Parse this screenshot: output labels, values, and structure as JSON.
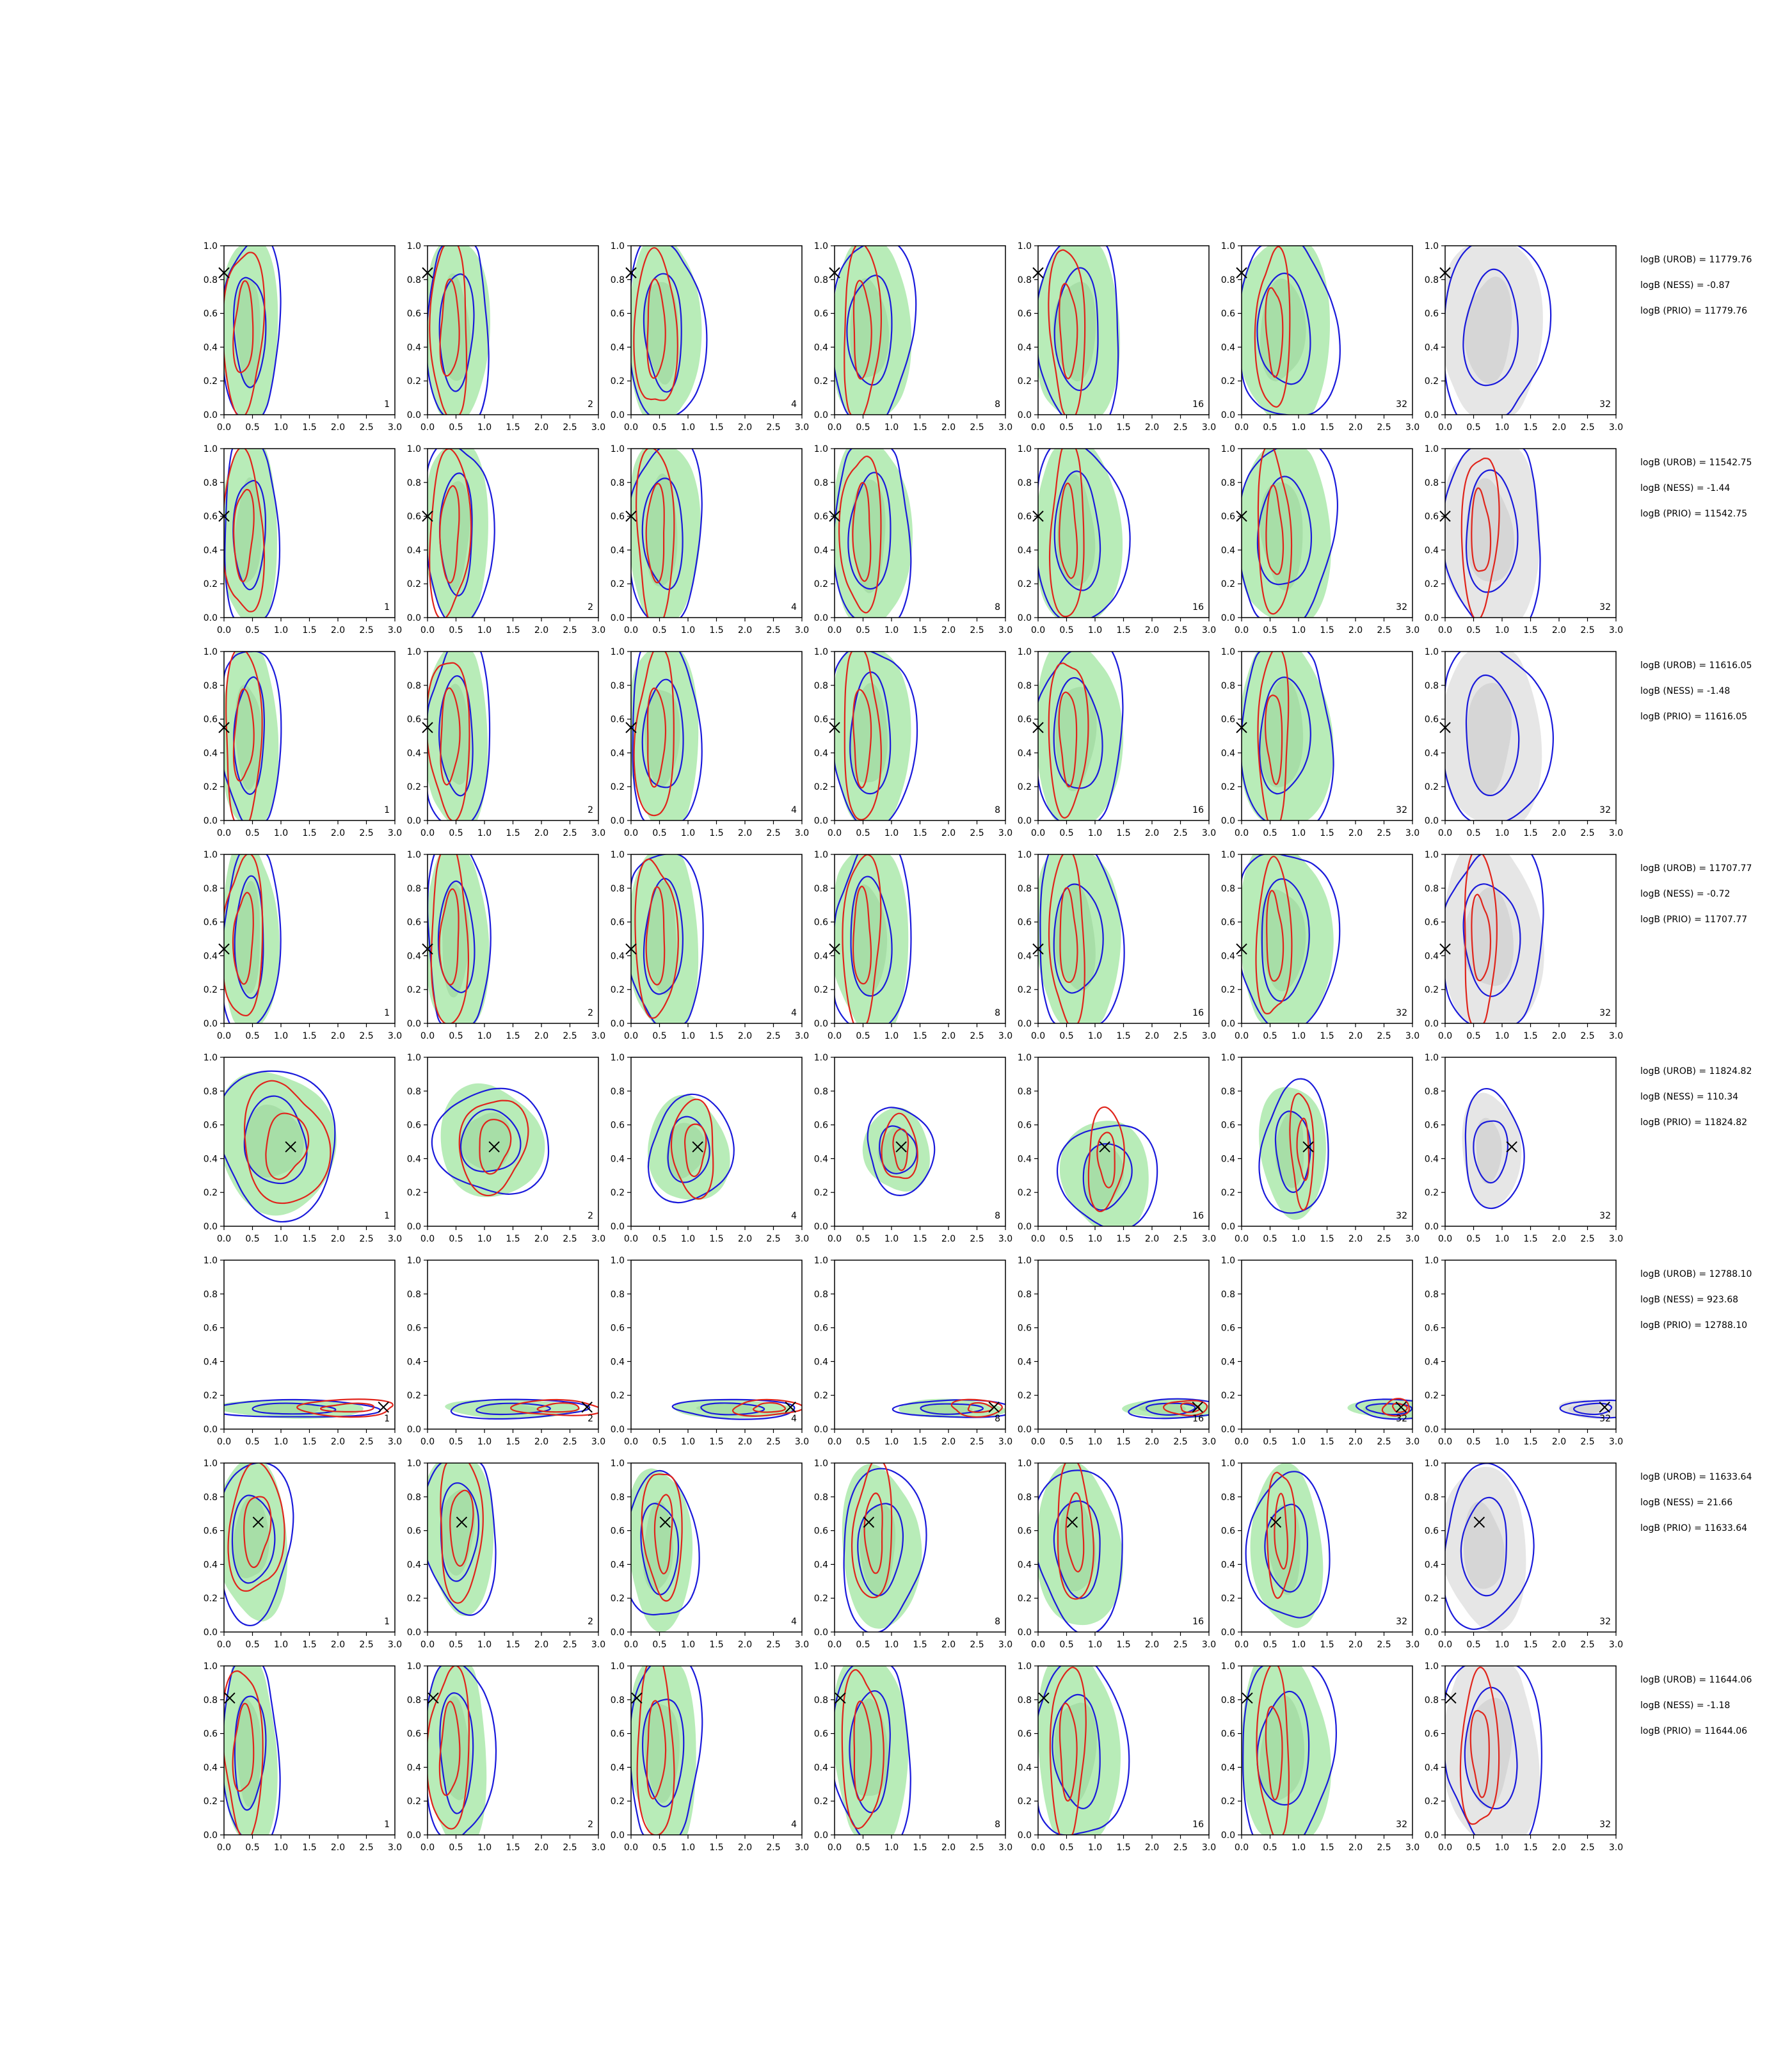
{
  "chart_data": {
    "type": "contour",
    "title": "",
    "xlabel": "",
    "ylabel": "",
    "xlim": [
      0.0,
      3.0
    ],
    "ylim": [
      0.0,
      1.0
    ],
    "xticks": [
      "0.0",
      "0.5",
      "1.0",
      "1.5",
      "2.0",
      "2.5",
      "3.0"
    ],
    "yticks": [
      "0.0",
      "0.2",
      "0.4",
      "0.6",
      "0.8",
      "1.0"
    ],
    "column_labels": [
      "1",
      "2",
      "4",
      "8",
      "16",
      "32",
      "32"
    ],
    "legend": "none",
    "colors": {
      "red_contour": "#e0241b",
      "blue_contour": "#1a1adb",
      "green_fill": "#b8ecb8",
      "green_fill_inner": "#9fd8a0",
      "grey_fill": "#e6e6e6",
      "grey_fill_inner": "#cfcfcf",
      "marker": "#000000"
    },
    "rows": [
      {
        "true_x": 0.0,
        "true_y": 0.84,
        "logB_UROB": "logB (UROB) = 11779.76",
        "logB_NESS": "logB (NESS) = -0.87",
        "logB_PRIO": "logB (PRIO) = 11779.76"
      },
      {
        "true_x": 0.0,
        "true_y": 0.6,
        "logB_UROB": "logB (UROB) = 11542.75",
        "logB_NESS": "logB (NESS) = -1.44",
        "logB_PRIO": "logB (PRIO) = 11542.75"
      },
      {
        "true_x": 0.0,
        "true_y": 0.55,
        "logB_UROB": "logB (UROB) = 11616.05",
        "logB_NESS": "logB (NESS) = -1.48",
        "logB_PRIO": "logB (PRIO) = 11616.05"
      },
      {
        "true_x": 0.0,
        "true_y": 0.44,
        "logB_UROB": "logB (UROB) = 11707.77",
        "logB_NESS": "logB (NESS) = -0.72",
        "logB_PRIO": "logB (PRIO) = 11707.77"
      },
      {
        "true_x": 1.17,
        "true_y": 0.47,
        "logB_UROB": "logB (UROB) = 11824.82",
        "logB_NESS": "logB (NESS) = 110.34",
        "logB_PRIO": "logB (PRIO) = 11824.82"
      },
      {
        "true_x": 2.8,
        "true_y": 0.13,
        "logB_UROB": "logB (UROB) = 12788.10",
        "logB_NESS": "logB (NESS) = 923.68",
        "logB_PRIO": "logB (PRIO) = 12788.10"
      },
      {
        "true_x": 0.6,
        "true_y": 0.65,
        "logB_UROB": "logB (UROB) = 11633.64",
        "logB_NESS": "logB (NESS) = 21.66",
        "logB_PRIO": "logB (PRIO) = 11633.64"
      },
      {
        "true_x": 0.1,
        "true_y": 0.81,
        "logB_UROB": "logB (UROB) = 11644.06",
        "logB_NESS": "logB (NESS) = -1.18",
        "logB_PRIO": "logB (PRIO) = 11644.06"
      }
    ]
  }
}
